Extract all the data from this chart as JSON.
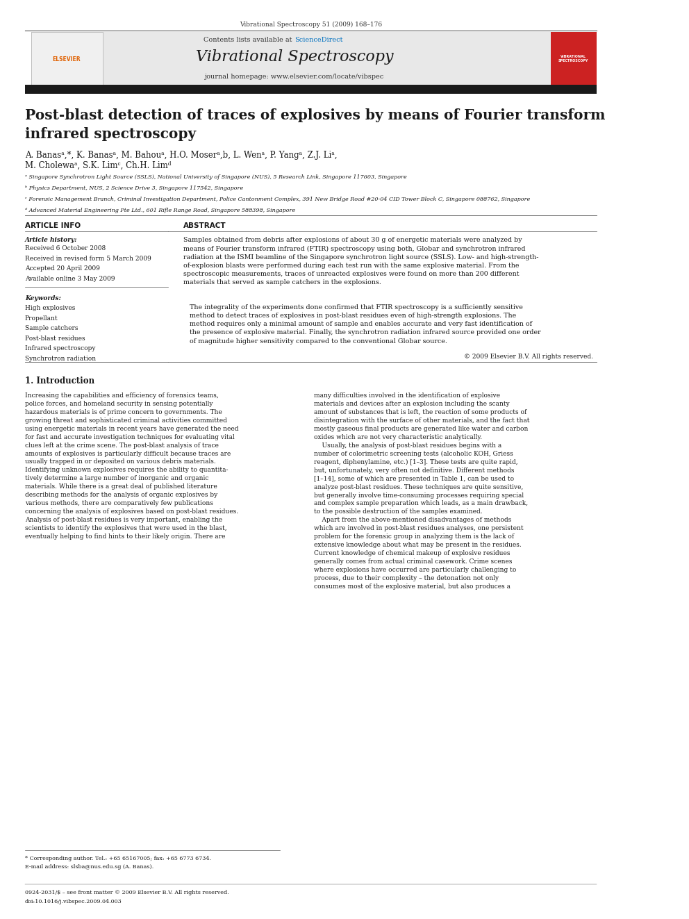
{
  "page_width": 9.92,
  "page_height": 13.23,
  "bg_color": "#ffffff",
  "top_journal_ref": "Vibrational Spectroscopy 51 (2009) 168–176",
  "header_bg": "#e8e8e8",
  "header_sciencedirect_color": "#0070c0",
  "black_bar_color": "#1a1a1a",
  "article_title": "Post-blast detection of traces of explosives by means of Fourier transform\ninfrared spectroscopy",
  "authors_full_line1": "A. Banasᵃ,*, K. Banasᵃ, M. Bahouᵃ, H.O. Moserᵃ,b, L. Wenᵃ, P. Yangᵃ, Z.J. Liᵃ,",
  "authors_full_line2": "M. Cholewaᵃ, S.K. Limᶜ, Ch.H. Limᵈ",
  "affil_a": "ᵃ Singapore Synchrotron Light Source (SSLS), National University of Singapore (NUS), 5 Research Link, Singapore 117603, Singapore",
  "affil_b": "ᵇ Physics Department, NUS, 2 Science Drive 3, Singapore 117542, Singapore",
  "affil_c": "ᶜ Forensic Management Branch, Criminal Investigation Department, Police Cantonment Complex, 391 New Bridge Road #20-04 CID Tower Block C, Singapore 088762, Singapore",
  "affil_d": "ᵈ Advanced Material Engineering Pte Ltd., 601 Rifle Range Road, Singapore 588398, Singapore",
  "article_info_title": "ARTICLE INFO",
  "article_history_title": "Article history:",
  "received1": "Received 6 October 2008",
  "received2": "Received in revised form 5 March 2009",
  "accepted": "Accepted 20 April 2009",
  "available": "Available online 3 May 2009",
  "keywords_title": "Keywords:",
  "keywords": [
    "High explosives",
    "Propellant",
    "Sample catchers",
    "Post-blast residues",
    "Infrared spectroscopy",
    "Synchrotron radiation"
  ],
  "abstract_title": "ABSTRACT",
  "abstract_p1": "Samples obtained from debris after explosions of about 30 g of energetic materials were analyzed by\nmeans of Fourier transform infrared (FTIR) spectroscopy using both, Globar and synchrotron infrared\nradiation at the ISMI beamline of the Singapore synchrotron light source (SSLS). Low- and high-strength-\nof-explosion blasts were performed during each test run with the same explosive material. From the\nspectroscopic measurements, traces of unreacted explosives were found on more than 200 different\nmaterials that served as sample catchers in the explosions.",
  "abstract_p2": "The integrality of the experiments done confirmed that FTIR spectroscopy is a sufficiently sensitive\nmethod to detect traces of explosives in post-blast residues even of high-strength explosions. The\nmethod requires only a minimal amount of sample and enables accurate and very fast identification of\nthe presence of explosive material. Finally, the synchrotron radiation infrared source provided one order\nof magnitude higher sensitivity compared to the conventional Globar source.",
  "abstract_copyright": "© 2009 Elsevier B.V. All rights reserved.",
  "section1_title": "1. Introduction",
  "intro_left_col": "Increasing the capabilities and efficiency of forensics teams,\npolice forces, and homeland security in sensing potentially\nhazardous materials is of prime concern to governments. The\ngrowing threat and sophisticated criminal activities committed\nusing energetic materials in recent years have generated the need\nfor fast and accurate investigation techniques for evaluating vital\nclues left at the crime scene. The post-blast analysis of trace\namounts of explosives is particularly difficult because traces are\nusually trapped in or deposited on various debris materials.\nIdentifying unknown explosives requires the ability to quantita-\ntively determine a large number of inorganic and organic\nmaterials. While there is a great deal of published literature\ndescribing methods for the analysis of organic explosives by\nvarious methods, there are comparatively few publications\nconcerning the analysis of explosives based on post-blast residues.\nAnalysis of post-blast residues is very important, enabling the\nscientists to identify the explosives that were used in the blast,\neventually helping to find hints to their likely origin. There are",
  "intro_right_col": "many difficulties involved in the identification of explosive\nmaterials and devices after an explosion including the scanty\namount of substances that is left, the reaction of some products of\ndisintegration with the surface of other materials, and the fact that\nmostly gaseous final products are generated like water and carbon\noxides which are not very characteristic analytically.\n    Usually, the analysis of post-blast residues begins with a\nnumber of colorimetric screening tests (alcoholic KOH, Griess\nreagent, diphenylamine, etc.) [1–3]. These tests are quite rapid,\nbut, unfortunately, very often not definitive. Different methods\n[1–14], some of which are presented in Table 1, can be used to\nanalyze post-blast residues. These techniques are quite sensitive,\nbut generally involve time-consuming processes requiring special\nand complex sample preparation which leads, as a main drawback,\nto the possible destruction of the samples examined.\n    Apart from the above-mentioned disadvantages of methods\nwhich are involved in post-blast residues analyses, one persistent\nproblem for the forensic group in analyzing them is the lack of\nextensive knowledge about what may be present in the residues.\nCurrent knowledge of chemical makeup of explosive residues\ngenerally comes from actual criminal casework. Crime scenes\nwhere explosions have occurred are particularly challenging to\nprocess, due to their complexity – the detonation not only\nconsumes most of the explosive material, but also produces a",
  "footnote_line1": "* Corresponding author. Tel.: +65 65167005; fax: +65 6773 6734.",
  "footnote_line2": "E-mail address: slsba@nus.edu.sg (A. Banas).",
  "footer_line1": "0924-2031/$ – see front matter © 2009 Elsevier B.V. All rights reserved.",
  "footer_line2": "doi:10.1016/j.vibspec.2009.04.003"
}
